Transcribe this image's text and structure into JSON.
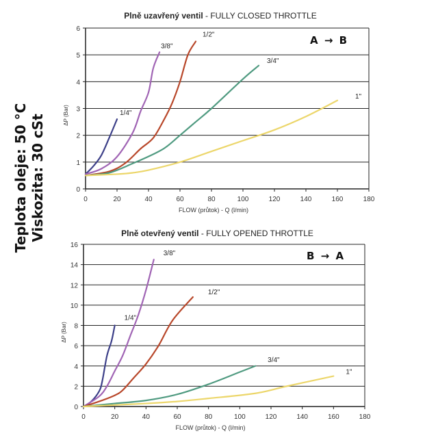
{
  "side_notes": {
    "temperature": "Teplota oleje: 50 °C",
    "viscosity": "Viskozita: 30 cSt"
  },
  "chart_data": [
    {
      "type": "line",
      "title_bold": "Plně uzavřený ventil",
      "title_rest": " - FULLY CLOSED THROTTLE",
      "direction": "A → B",
      "dir_from": "A",
      "dir_to": "B",
      "xlabel": "FLOW (průtok) - Q (l/min)",
      "ylabel": "ΔP (Bar)",
      "xlim": [
        0,
        180
      ],
      "ylim": [
        0,
        6
      ],
      "xticks": [
        0,
        20,
        40,
        60,
        80,
        100,
        120,
        140,
        160,
        180
      ],
      "yticks": [
        0,
        1,
        2,
        3,
        4,
        5,
        6
      ],
      "grid": true,
      "series": [
        {
          "name": "1/4\"",
          "color": "#3c3f88",
          "x": [
            0,
            5,
            10,
            15,
            20
          ],
          "y": [
            0.55,
            0.85,
            1.25,
            1.9,
            2.6
          ]
        },
        {
          "name": "3/8\"",
          "color": "#a064b4",
          "x": [
            0,
            10,
            20,
            30,
            35,
            40,
            43,
            47
          ],
          "y": [
            0.55,
            0.75,
            1.2,
            2.1,
            2.9,
            3.6,
            4.5,
            5.1
          ]
        },
        {
          "name": "1/2\"",
          "color": "#b8472a",
          "x": [
            0,
            15,
            25,
            35,
            43,
            50,
            55,
            60,
            65,
            70
          ],
          "y": [
            0.5,
            0.65,
            0.95,
            1.5,
            1.9,
            2.6,
            3.2,
            4.0,
            5.0,
            5.5
          ]
        },
        {
          "name": "3/4\"",
          "color": "#4f9a80",
          "x": [
            0,
            15,
            30,
            45,
            52,
            60,
            70,
            80,
            100,
            110
          ],
          "y": [
            0.5,
            0.6,
            0.95,
            1.35,
            1.6,
            2.0,
            2.5,
            3.0,
            4.1,
            4.6
          ]
        },
        {
          "name": "1\"",
          "color": "#ecd66a",
          "x": [
            0,
            20,
            30,
            40,
            60,
            80,
            100,
            120,
            140,
            160
          ],
          "y": [
            0.5,
            0.55,
            0.6,
            0.7,
            1.0,
            1.4,
            1.8,
            2.2,
            2.7,
            3.3
          ]
        }
      ]
    },
    {
      "type": "line",
      "title_bold": "Plně otevřený ventil",
      "title_rest": " - FULLY OPENED THROTTLE",
      "direction": "B → A",
      "dir_from": "B",
      "dir_to": "A",
      "xlabel": "FLOW (průtok) - Q (l/min)",
      "ylabel": "ΔP (Bar)",
      "xlim": [
        0,
        180
      ],
      "ylim": [
        0,
        16
      ],
      "xticks": [
        0,
        20,
        40,
        60,
        80,
        100,
        120,
        140,
        160,
        180
      ],
      "yticks": [
        0,
        2,
        4,
        6,
        8,
        10,
        12,
        14,
        16
      ],
      "grid": true,
      "series": [
        {
          "name": "1/4\"",
          "color": "#3c3f88",
          "x": [
            0,
            5,
            10,
            12,
            15,
            18,
            20
          ],
          "y": [
            0,
            0.5,
            1.5,
            2.5,
            5,
            6.5,
            8
          ]
        },
        {
          "name": "3/8\"",
          "color": "#a064b4",
          "x": [
            0,
            10,
            15,
            20,
            25,
            30,
            35,
            40,
            45
          ],
          "y": [
            0,
            1,
            2,
            3.5,
            5,
            7,
            9,
            11.5,
            14.5
          ]
        },
        {
          "name": "1/2\"",
          "color": "#b8472a",
          "x": [
            0,
            10,
            20,
            25,
            32,
            40,
            48,
            57,
            70
          ],
          "y": [
            0,
            0.5,
            1.1,
            1.6,
            2.8,
            4.2,
            6,
            8.5,
            10.8
          ]
        },
        {
          "name": "3/4\"",
          "color": "#4f9a80",
          "x": [
            0,
            20,
            40,
            60,
            80,
            100,
            110
          ],
          "y": [
            0,
            0.3,
            0.6,
            1.2,
            2.2,
            3.4,
            4
          ]
        },
        {
          "name": "1\"",
          "color": "#ecd66a",
          "x": [
            0,
            40,
            60,
            80,
            110,
            130,
            160
          ],
          "y": [
            0,
            0.3,
            0.5,
            0.8,
            1.3,
            2,
            3
          ]
        }
      ]
    }
  ]
}
